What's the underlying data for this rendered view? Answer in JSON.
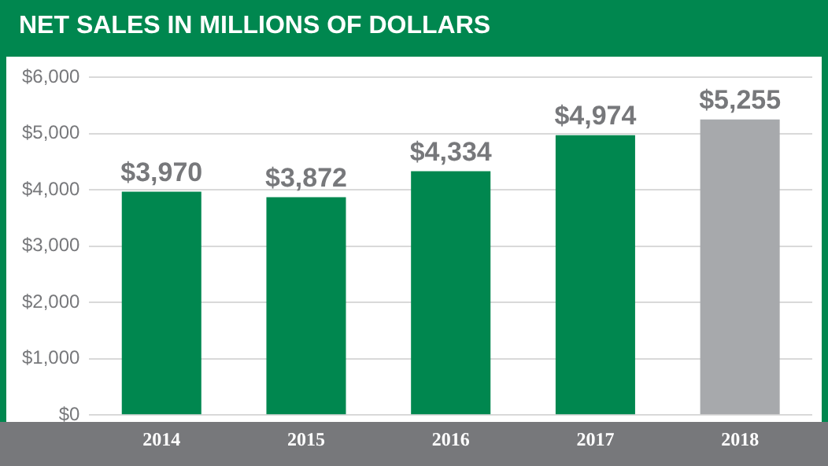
{
  "chart_data": {
    "type": "bar",
    "title": "NET SALES IN MILLIONS OF DOLLARS",
    "categories": [
      "2014",
      "2015",
      "2016",
      "2017",
      "2018"
    ],
    "values": [
      3970,
      3872,
      4334,
      4974,
      5255
    ],
    "colors": [
      "#00874f",
      "#00874f",
      "#00874f",
      "#00874f",
      "#a7a9ac"
    ],
    "value_labels": [
      "$3,970",
      "$3,872",
      "$4,334",
      "$4,974",
      "$5,255"
    ],
    "ylim": [
      0,
      6000
    ],
    "yticks": [
      {
        "value": 0,
        "label": "$0"
      },
      {
        "value": 1000,
        "label": "$1,000"
      },
      {
        "value": 2000,
        "label": "$2,000"
      },
      {
        "value": 3000,
        "label": "$3,000"
      },
      {
        "value": 4000,
        "label": "$4,000"
      },
      {
        "value": 5000,
        "label": "$5,000"
      },
      {
        "value": 6000,
        "label": "$6,000"
      }
    ],
    "grid": "y",
    "legend": false
  }
}
